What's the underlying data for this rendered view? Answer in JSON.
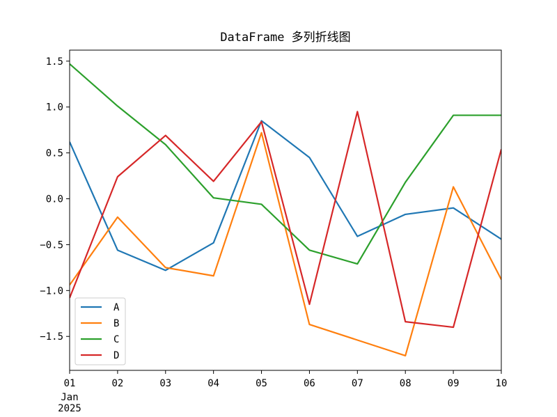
{
  "chart_data": {
    "type": "line",
    "title": "DataFrame 多列折线图",
    "xlabel": "",
    "ylabel": "",
    "x_type": "date",
    "x": [
      "2025-01-01",
      "2025-01-02",
      "2025-01-03",
      "2025-01-04",
      "2025-01-05",
      "2025-01-06",
      "2025-01-07",
      "2025-01-08",
      "2025-01-09",
      "2025-01-10"
    ],
    "x_tick_labels": [
      "01",
      "02",
      "03",
      "04",
      "05",
      "06",
      "07",
      "08",
      "09",
      "10"
    ],
    "x_secondary_label": [
      "Jan",
      "2025"
    ],
    "ylim": [
      -1.87,
      1.62
    ],
    "y_ticks": [
      -1.5,
      -1.0,
      -0.5,
      0.0,
      0.5,
      1.0,
      1.5
    ],
    "y_tick_labels": [
      "−1.5",
      "−1.0",
      "−0.5",
      "0.0",
      "0.5",
      "1.0",
      "1.5"
    ],
    "grid": false,
    "legend_position": "bottom-left",
    "series": [
      {
        "name": "A",
        "color": "#1f77b4",
        "values": [
          0.62,
          -0.56,
          -0.78,
          -0.48,
          0.85,
          0.45,
          -0.41,
          -0.17,
          -0.1,
          -0.44
        ]
      },
      {
        "name": "B",
        "color": "#ff7f0e",
        "values": [
          -0.94,
          -0.2,
          -0.75,
          -0.84,
          0.72,
          -1.37,
          -1.54,
          -1.71,
          0.13,
          -0.88
        ]
      },
      {
        "name": "C",
        "color": "#2ca02c",
        "values": [
          1.47,
          1.01,
          0.59,
          0.01,
          -0.06,
          -0.56,
          -0.71,
          0.18,
          0.91,
          0.91
        ]
      },
      {
        "name": "D",
        "color": "#d62728",
        "values": [
          -1.08,
          0.24,
          0.69,
          0.19,
          0.84,
          -1.15,
          0.95,
          -1.34,
          -1.4,
          0.54
        ]
      }
    ]
  }
}
